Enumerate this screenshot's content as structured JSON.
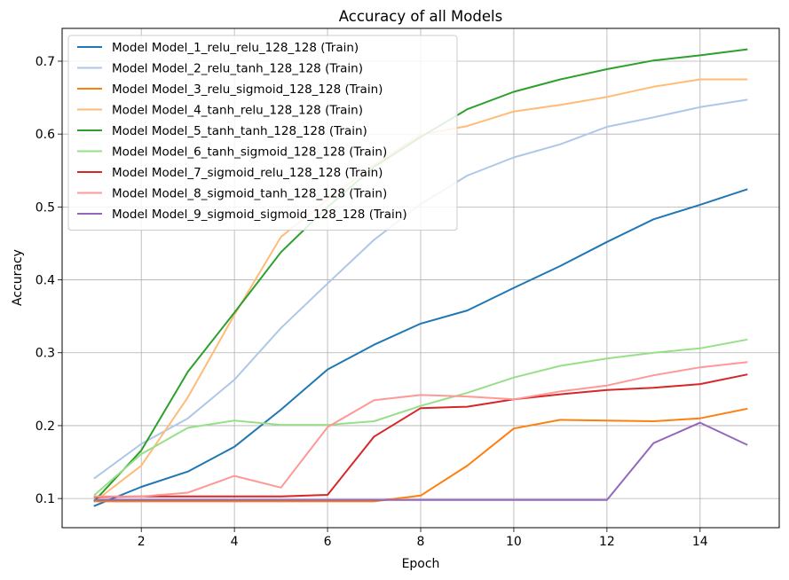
{
  "chart_data": {
    "type": "line",
    "title": "Accuracy of all Models",
    "xlabel": "Epoch",
    "ylabel": "Accuracy",
    "xlim": [
      0.3,
      15.7
    ],
    "ylim": [
      0.06,
      0.745
    ],
    "xticks": [
      2,
      4,
      6,
      8,
      10,
      12,
      14
    ],
    "yticks": [
      0.1,
      0.2,
      0.3,
      0.4,
      0.5,
      0.6,
      0.7
    ],
    "grid": true,
    "legend_position": "top-left",
    "x": [
      1,
      2,
      3,
      4,
      5,
      6,
      7,
      8,
      9,
      10,
      11,
      12,
      13,
      14,
      15
    ],
    "series": [
      {
        "name": "Model Model_1_relu_relu_128_128 (Train)",
        "color": "#1f77b4",
        "values": [
          0.09,
          0.116,
          0.137,
          0.171,
          0.222,
          0.277,
          0.311,
          0.34,
          0.358,
          0.389,
          0.419,
          0.452,
          0.483,
          0.503,
          0.524
        ]
      },
      {
        "name": "Model Model_2_relu_tanh_128_128 (Train)",
        "color": "#aec7e8",
        "values": [
          0.128,
          0.175,
          0.21,
          0.263,
          0.334,
          0.395,
          0.455,
          0.504,
          0.543,
          0.568,
          0.586,
          0.61,
          0.623,
          0.637,
          0.647
        ]
      },
      {
        "name": "Model Model_3_relu_sigmoid_128_128 (Train)",
        "color": "#ff7f0e",
        "values": [
          0.096,
          0.096,
          0.096,
          0.096,
          0.096,
          0.096,
          0.096,
          0.104,
          0.145,
          0.196,
          0.208,
          0.207,
          0.206,
          0.21,
          0.223
        ]
      },
      {
        "name": "Model Model_4_tanh_relu_128_128 (Train)",
        "color": "#ffbb78",
        "values": [
          0.096,
          0.145,
          0.239,
          0.352,
          0.459,
          0.51,
          0.558,
          0.599,
          0.611,
          0.631,
          0.64,
          0.651,
          0.665,
          0.675,
          0.675
        ]
      },
      {
        "name": "Model Model_5_tanh_tanh_128_128 (Train)",
        "color": "#2ca02c",
        "values": [
          0.097,
          0.166,
          0.274,
          0.355,
          0.438,
          0.5,
          0.555,
          0.596,
          0.634,
          0.658,
          0.675,
          0.689,
          0.701,
          0.708,
          0.716
        ]
      },
      {
        "name": "Model Model_6_tanh_sigmoid_128_128 (Train)",
        "color": "#98df8a",
        "values": [
          0.105,
          0.161,
          0.197,
          0.207,
          0.201,
          0.201,
          0.206,
          0.227,
          0.245,
          0.266,
          0.282,
          0.292,
          0.3,
          0.306,
          0.318
        ]
      },
      {
        "name": "Model Model_7_sigmoid_relu_128_128 (Train)",
        "color": "#d62728",
        "values": [
          0.102,
          0.103,
          0.103,
          0.103,
          0.103,
          0.105,
          0.185,
          0.224,
          0.226,
          0.236,
          0.243,
          0.249,
          0.252,
          0.257,
          0.27
        ]
      },
      {
        "name": "Model Model_8_sigmoid_tanh_128_128 (Train)",
        "color": "#ff9896",
        "values": [
          0.103,
          0.103,
          0.108,
          0.131,
          0.115,
          0.198,
          0.235,
          0.242,
          0.24,
          0.236,
          0.247,
          0.255,
          0.269,
          0.28,
          0.287
        ]
      },
      {
        "name": "Model Model_9_sigmoid_sigmoid_128_128 (Train)",
        "color": "#9467bd",
        "values": [
          0.098,
          0.098,
          0.098,
          0.098,
          0.098,
          0.098,
          0.098,
          0.098,
          0.098,
          0.098,
          0.098,
          0.098,
          0.176,
          0.204,
          0.174
        ]
      }
    ]
  }
}
